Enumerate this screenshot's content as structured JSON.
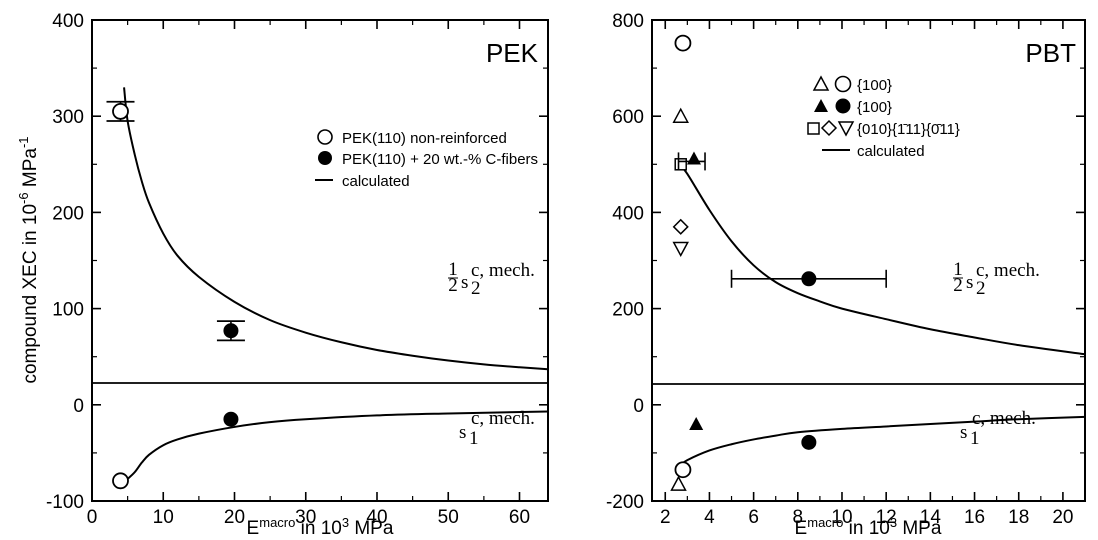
{
  "chart_data": [
    {
      "type": "scatter",
      "title": "PEK",
      "ylabel": "compound XEC in 10",
      "ylabel_exp": "-6",
      "ylabel_unit": " MPa",
      "ylabel_unit_exp": "-1",
      "xlabel": "E",
      "xlabel_sup": "macro",
      "xlabel_rest": " in 10",
      "xlabel_exp": "3",
      "xlabel_unit": " MPa",
      "xlim": [
        0,
        64
      ],
      "ylim": [
        -100,
        400
      ],
      "xticks": [
        0,
        10,
        20,
        30,
        40,
        50,
        60
      ],
      "yticks": [
        -100,
        0,
        100,
        200,
        300,
        400
      ],
      "legend_position": "upper-right",
      "legend": [
        {
          "marker": "open-circle",
          "label": "PEK(110) non-reinforced"
        },
        {
          "marker": "filled-circle",
          "label": "PEK(110) + 20 wt.-% C-fibers"
        },
        {
          "marker": "line",
          "label": "calculated"
        }
      ],
      "annotations": {
        "s2_prefix": "1",
        "s2_den": "2",
        "s2_main": "s",
        "s2_sub": "2",
        "s2_sup": "c, mech.",
        "s1_main": "s",
        "s1_sub": "1",
        "s1_sup": "c, mech."
      },
      "series": [
        {
          "name": "PEK(110) non-reinforced",
          "marker": "open-circle",
          "points": [
            {
              "x": 4,
              "y": 305,
              "yerr": 10
            },
            {
              "x": 4,
              "y": -79
            }
          ]
        },
        {
          "name": "PEK(110) + 20 wt.-% C-fibers",
          "marker": "filled-circle",
          "points": [
            {
              "x": 19.5,
              "y": 77,
              "yerr": 10
            },
            {
              "x": 19.5,
              "y": -15
            }
          ]
        },
        {
          "name": "calculated",
          "marker": "line",
          "curves": [
            [
              [
                4.5,
                330
              ],
              [
                5,
                295
              ],
              [
                6,
                260
              ],
              [
                7,
                232
              ],
              [
                8,
                210
              ],
              [
                10,
                178
              ],
              [
                12,
                155
              ],
              [
                15,
                133
              ],
              [
                20,
                107
              ],
              [
                25,
                88
              ],
              [
                30,
                75
              ],
              [
                35,
                65
              ],
              [
                40,
                57
              ],
              [
                45,
                51
              ],
              [
                50,
                46
              ],
              [
                55,
                42
              ],
              [
                60,
                39
              ],
              [
                64,
                37
              ]
            ],
            [
              [
                4.5,
                -80
              ],
              [
                5,
                -77
              ],
              [
                6,
                -70
              ],
              [
                7,
                -60
              ],
              [
                8,
                -52
              ],
              [
                10,
                -42
              ],
              [
                12,
                -36
              ],
              [
                15,
                -30
              ],
              [
                20,
                -23
              ],
              [
                25,
                -18
              ],
              [
                30,
                -15
              ],
              [
                40,
                -11
              ],
              [
                50,
                -9
              ],
              [
                64,
                -7
              ]
            ]
          ]
        }
      ]
    },
    {
      "type": "scatter",
      "title": "PBT",
      "xlabel": "E",
      "xlabel_sup": "macro",
      "xlabel_rest": " in 10",
      "xlabel_exp": "3",
      "xlabel_unit": " MPa",
      "xlim": [
        1.4,
        21
      ],
      "ylim": [
        -200,
        800
      ],
      "xticks": [
        2,
        4,
        6,
        8,
        10,
        12,
        14,
        16,
        18,
        20
      ],
      "yticks": [
        -200,
        0,
        200,
        400,
        600,
        800
      ],
      "legend_position": "upper-right",
      "legend": [
        {
          "markers": [
            "open-triangle",
            "open-circle"
          ],
          "label": "{100}"
        },
        {
          "markers": [
            "filled-triangle",
            "filled-circle"
          ],
          "label": "{100}"
        },
        {
          "markers": [
            "open-square",
            "open-diamond",
            "open-down-triangle"
          ],
          "label": "{010}{1̄11}{0̄11}"
        },
        {
          "marker": "line",
          "label": "calculated"
        }
      ],
      "annotations": {
        "s2_prefix": "1",
        "s2_den": "2",
        "s2_main": "s",
        "s2_sub": "2",
        "s2_sup": "c, mech.",
        "s1_main": "s",
        "s1_sub": "1",
        "s1_sup": "c, mech."
      },
      "series": [
        {
          "marker": "open-circle",
          "points": [
            {
              "x": 2.8,
              "y": 752
            },
            {
              "x": 2.8,
              "y": -135
            }
          ]
        },
        {
          "marker": "open-triangle",
          "points": [
            {
              "x": 2.7,
              "y": 600
            },
            {
              "x": 2.6,
              "y": -165
            }
          ]
        },
        {
          "marker": "filled-triangle",
          "points": [
            {
              "x": 3.3,
              "y": 512
            },
            {
              "x": 3.4,
              "y": -40
            }
          ]
        },
        {
          "marker": "filled-circle",
          "points": [
            {
              "x": 8.5,
              "y": 262,
              "xerr_low": 5,
              "xerr_high": 12
            },
            {
              "x": 8.5,
              "y": -78
            }
          ]
        },
        {
          "marker": "open-square",
          "points": [
            {
              "x": 2.7,
              "y": 500
            }
          ]
        },
        {
          "marker": "open-diamond",
          "points": [
            {
              "x": 2.7,
              "y": 370
            }
          ]
        },
        {
          "marker": "open-down-triangle",
          "points": [
            {
              "x": 2.7,
              "y": 325
            }
          ]
        },
        {
          "marker": "errorbar",
          "points": [
            {
              "x": 3.1,
              "y": 506,
              "xerr_low": 2.6,
              "xerr_high": 3.8
            }
          ]
        },
        {
          "name": "calculated",
          "marker": "line",
          "curves": [
            [
              [
                2.7,
                495
              ],
              [
                3,
                480
              ],
              [
                4,
                405
              ],
              [
                5,
                340
              ],
              [
                6,
                290
              ],
              [
                7,
                255
              ],
              [
                8,
                232
              ],
              [
                9,
                215
              ],
              [
                10,
                200
              ],
              [
                12,
                178
              ],
              [
                14,
                157
              ],
              [
                16,
                140
              ],
              [
                18,
                124
              ],
              [
                21,
                105
              ]
            ],
            [
              [
                2.7,
                -125
              ],
              [
                3,
                -115
              ],
              [
                4,
                -95
              ],
              [
                5,
                -82
              ],
              [
                6,
                -72
              ],
              [
                7,
                -64
              ],
              [
                8,
                -57
              ],
              [
                10,
                -50
              ],
              [
                12,
                -45
              ],
              [
                14,
                -40
              ],
              [
                16,
                -35
              ],
              [
                18,
                -30
              ],
              [
                21,
                -25
              ]
            ]
          ]
        }
      ]
    }
  ]
}
